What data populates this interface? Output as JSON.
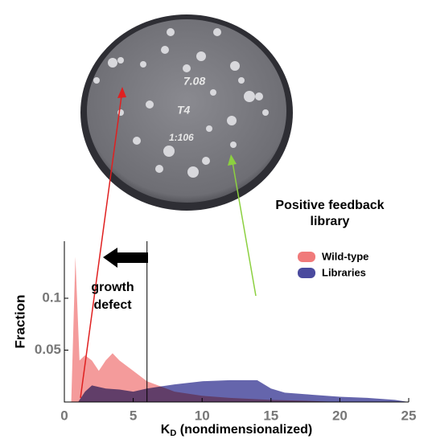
{
  "chart_data": {
    "type": "area",
    "plate_labels": [
      "7.08",
      "T4",
      "1:106"
    ],
    "annotation_library": [
      "Positive feedback",
      "library"
    ],
    "annotation_defect": [
      "growth",
      "defect"
    ],
    "ylabel": "Fraction",
    "xlabel": {
      "main": "K",
      "sub": "D",
      "rest": " (nondimensionalized)"
    },
    "threshold": 6,
    "xlim": [
      0,
      25
    ],
    "xticks": [
      0,
      5,
      10,
      15,
      20,
      25
    ],
    "ylim": [
      0,
      0.155
    ],
    "yticks": [
      0.05,
      0.1
    ],
    "legend": "upper right",
    "series": [
      {
        "name": "Wild-type",
        "color": "#f07a7a",
        "x": [
          0.5,
          0.8,
          1.1,
          1.5,
          2,
          2.5,
          3,
          3.5,
          4,
          5,
          6,
          7,
          8,
          10,
          12,
          15,
          18,
          20
        ],
        "values": [
          0,
          0.14,
          0.04,
          0.045,
          0.04,
          0.03,
          0.04,
          0.047,
          0.04,
          0.03,
          0.02,
          0.015,
          0.01,
          0.006,
          0.004,
          0.002,
          0.001,
          0
        ]
      },
      {
        "name": "Libraries",
        "color": "#4a4a9e",
        "x": [
          1,
          1.5,
          2,
          3,
          4,
          5,
          6,
          7,
          8,
          10,
          12,
          14,
          15,
          16,
          18,
          20,
          22,
          24,
          25
        ],
        "values": [
          0,
          0.01,
          0.016,
          0.013,
          0.012,
          0.01,
          0.013,
          0.015,
          0.017,
          0.02,
          0.021,
          0.021,
          0.013,
          0.009,
          0.007,
          0.005,
          0.004,
          0.002,
          0
        ]
      }
    ]
  }
}
